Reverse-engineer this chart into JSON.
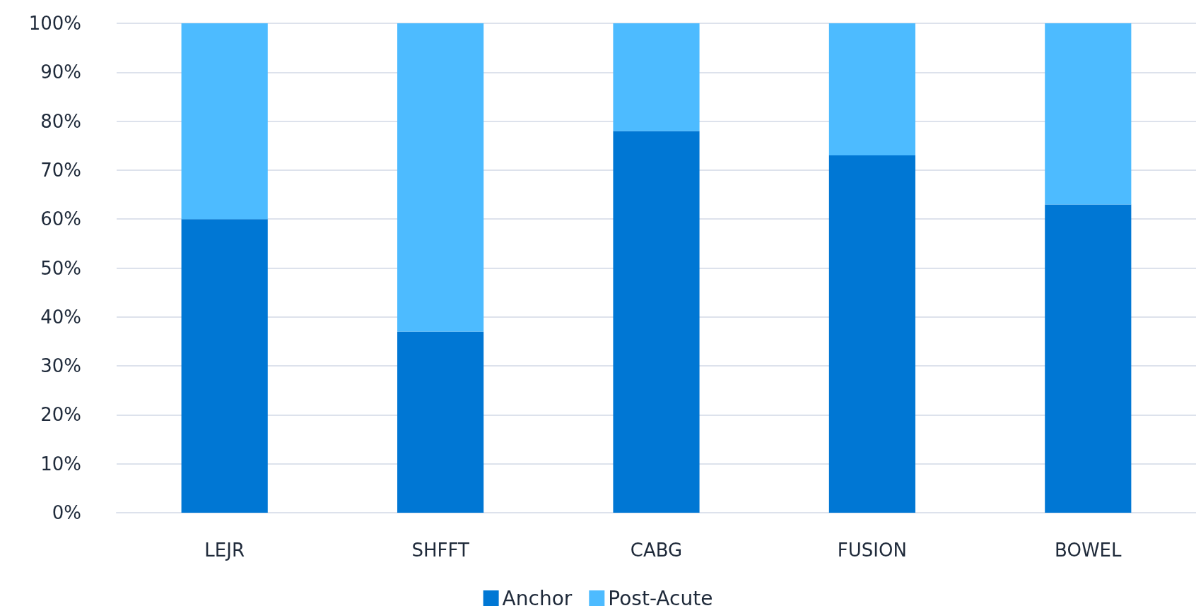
{
  "chart_data": {
    "type": "bar",
    "stacked": true,
    "categories": [
      "LEJR",
      "SHFFT",
      "CABG",
      "FUSION",
      "BOWEL"
    ],
    "series": [
      {
        "name": "Anchor",
        "color": "#0077d4",
        "values": [
          60,
          37,
          78,
          73,
          63
        ]
      },
      {
        "name": "Post-Acute",
        "color": "#4dbbff",
        "values": [
          40,
          63,
          22,
          27,
          37
        ]
      }
    ],
    "ylim": [
      0,
      100
    ],
    "yticks": [
      {
        "value": 0,
        "label": "0%"
      },
      {
        "value": 10,
        "label": "10%"
      },
      {
        "value": 20,
        "label": "20%"
      },
      {
        "value": 30,
        "label": "30%"
      },
      {
        "value": 40,
        "label": "40%"
      },
      {
        "value": 50,
        "label": "50%"
      },
      {
        "value": 60,
        "label": "60%"
      },
      {
        "value": 70,
        "label": "70%"
      },
      {
        "value": 80,
        "label": "80%"
      },
      {
        "value": 90,
        "label": "90%"
      },
      {
        "value": 100,
        "label": "100%"
      }
    ],
    "grid": "y",
    "legend": "bottom"
  }
}
